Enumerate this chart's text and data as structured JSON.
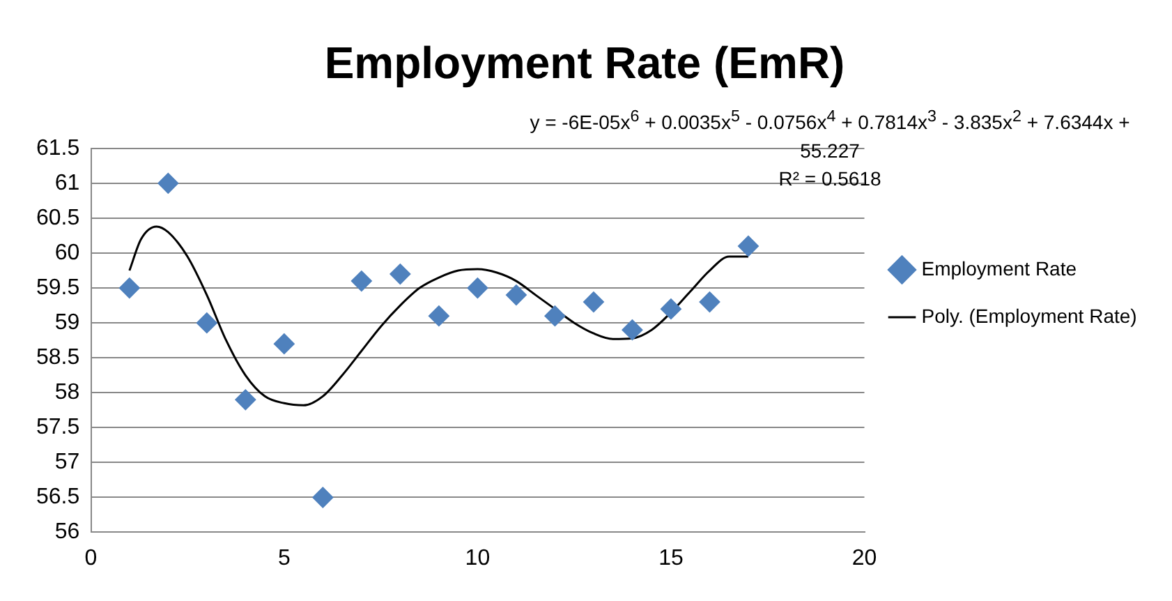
{
  "chart_data": {
    "type": "scatter",
    "title": "Employment Rate (EmR)",
    "x": [
      1,
      2,
      3,
      4,
      5,
      6,
      7,
      8,
      9,
      10,
      11,
      12,
      13,
      14,
      15,
      16,
      17
    ],
    "series": [
      {
        "name": "Employment Rate",
        "color": "#4f81bd",
        "marker": "diamond",
        "values": [
          59.5,
          61,
          59,
          57.9,
          58.7,
          56.5,
          59.6,
          59.7,
          59.1,
          59.5,
          59.4,
          59.1,
          59.3,
          58.9,
          59.2,
          59.3,
          60.1
        ]
      },
      {
        "name": "Poly. (Employment Rate)",
        "type": "line",
        "color": "#000000",
        "marker": "none",
        "x": [
          1,
          1.3,
          1.7,
          2,
          2.5,
          3,
          3.5,
          4,
          4.5,
          5,
          5.5,
          6,
          6.5,
          7,
          7.5,
          8,
          8.5,
          9,
          9.5,
          10,
          10.5,
          11,
          11.5,
          12,
          12.5,
          13,
          13.5,
          14,
          14.5,
          15,
          15.5,
          16,
          16.5,
          17
        ],
        "values": [
          59.75,
          60.2,
          60.38,
          60.3,
          59.95,
          59.4,
          58.75,
          58.25,
          57.95,
          57.85,
          57.82,
          57.95,
          58.25,
          58.6,
          58.95,
          59.25,
          59.5,
          59.65,
          59.75,
          59.77,
          59.72,
          59.6,
          59.4,
          59.2,
          59.0,
          58.85,
          58.77,
          58.78,
          58.9,
          59.15,
          59.45,
          59.75,
          59.95,
          59.95
        ]
      }
    ],
    "xlim": [
      0,
      20
    ],
    "xticks": [
      0,
      5,
      10,
      15,
      20
    ],
    "ylim": [
      56,
      61.5
    ],
    "yticks": [
      56,
      56.5,
      57,
      57.5,
      58,
      58.5,
      59,
      59.5,
      60,
      60.5,
      61,
      61.5
    ],
    "grid": "y",
    "legend": "right",
    "annotations": [
      "y = -6E-05x$^{6}$ + 0.0035x$^{5}$ - 0.0756x$^{4}$ + 0.7814x$^{3}$ - 3.835x$^{2}$ + 7.6344x + 55.227",
      "R² = 0.5618"
    ]
  }
}
